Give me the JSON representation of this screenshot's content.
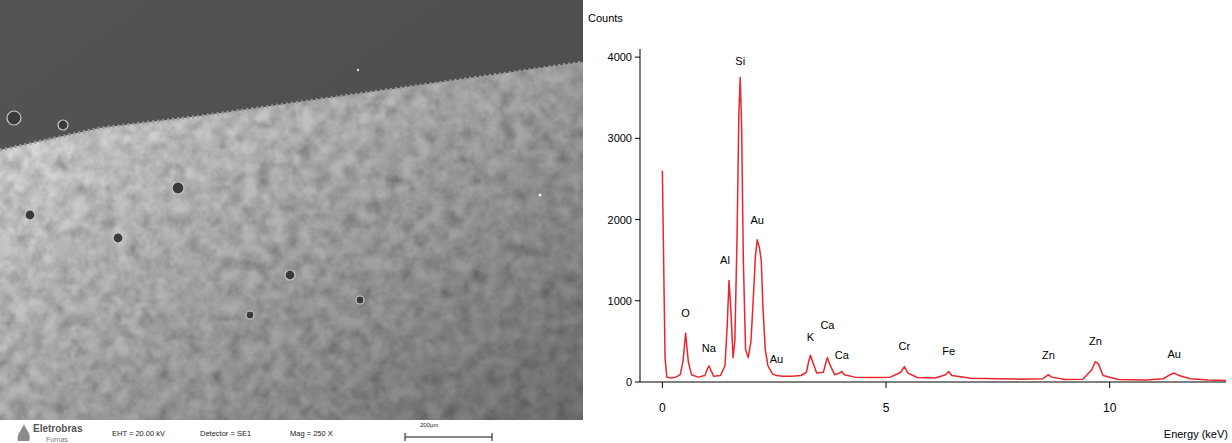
{
  "micrograph": {
    "logo": "Eletrobras",
    "logo_sub": "Furnas",
    "eht": "EHT = 20.00 kV",
    "detector": "Detector = SE1",
    "mag": "Mag =  250 X",
    "scale_bar": "200µm"
  },
  "chart_data": {
    "type": "line",
    "x_label": "Energy (keV)",
    "y_label": "Counts",
    "color": "#e8262b",
    "grid": false,
    "xlim": [
      -0.5,
      12.6
    ],
    "ylim": [
      0,
      4100
    ],
    "xticks": [
      0,
      5,
      10
    ],
    "yticks": [
      0,
      1000,
      2000,
      3000,
      4000
    ],
    "x": [
      0,
      0.02,
      0.06,
      0.1,
      0.2,
      0.3,
      0.4,
      0.46,
      0.52,
      0.58,
      0.65,
      0.8,
      0.95,
      1.0,
      1.04,
      1.08,
      1.15,
      1.3,
      1.4,
      1.45,
      1.49,
      1.53,
      1.58,
      1.62,
      1.67,
      1.71,
      1.74,
      1.77,
      1.81,
      1.86,
      1.92,
      1.98,
      2.03,
      2.08,
      2.12,
      2.17,
      2.21,
      2.25,
      2.3,
      2.36,
      2.41,
      2.46,
      2.55,
      2.7,
      2.9,
      3.1,
      3.22,
      3.27,
      3.31,
      3.36,
      3.45,
      3.6,
      3.65,
      3.69,
      3.74,
      3.85,
      3.96,
      4.01,
      4.07,
      4.3,
      4.7,
      5.1,
      5.33,
      5.41,
      5.49,
      5.7,
      6.1,
      6.33,
      6.4,
      6.47,
      6.9,
      7.5,
      8.0,
      8.5,
      8.58,
      8.63,
      8.7,
      9.0,
      9.4,
      9.6,
      9.68,
      9.75,
      9.85,
      10.2,
      10.8,
      11.2,
      11.35,
      11.44,
      11.55,
      11.8,
      12.2,
      12.6
    ],
    "values": [
      2600,
      1800,
      300,
      60,
      50,
      60,
      90,
      250,
      600,
      250,
      90,
      60,
      80,
      150,
      200,
      150,
      70,
      80,
      200,
      700,
      1250,
      900,
      300,
      500,
      1800,
      3300,
      3750,
      3200,
      1500,
      400,
      300,
      500,
      1000,
      1550,
      1750,
      1650,
      1500,
      900,
      400,
      200,
      150,
      100,
      80,
      70,
      70,
      80,
      120,
      250,
      330,
      250,
      110,
      120,
      230,
      300,
      220,
      90,
      110,
      130,
      90,
      60,
      55,
      60,
      120,
      190,
      110,
      55,
      50,
      90,
      130,
      80,
      45,
      40,
      35,
      40,
      70,
      90,
      60,
      30,
      35,
      150,
      250,
      220,
      80,
      30,
      25,
      40,
      90,
      110,
      80,
      40,
      25,
      20
    ],
    "annotations": [
      {
        "text": "O",
        "x": 0.52,
        "y": 850
      },
      {
        "text": "Na",
        "x": 1.04,
        "y": 420
      },
      {
        "text": "Al",
        "x": 1.4,
        "y": 1500
      },
      {
        "text": "Si",
        "x": 1.74,
        "y": 3950
      },
      {
        "text": "Au",
        "x": 2.12,
        "y": 2000
      },
      {
        "text": "Au",
        "x": 2.55,
        "y": 280
      },
      {
        "text": "K",
        "x": 3.31,
        "y": 560
      },
      {
        "text": "Ca",
        "x": 3.69,
        "y": 700
      },
      {
        "text": "Ca",
        "x": 4.01,
        "y": 330
      },
      {
        "text": "Cr",
        "x": 5.41,
        "y": 440
      },
      {
        "text": "Fe",
        "x": 6.4,
        "y": 380
      },
      {
        "text": "Zn",
        "x": 8.63,
        "y": 330
      },
      {
        "text": "Zn",
        "x": 9.68,
        "y": 500
      },
      {
        "text": "Au",
        "x": 11.44,
        "y": 350
      }
    ]
  }
}
